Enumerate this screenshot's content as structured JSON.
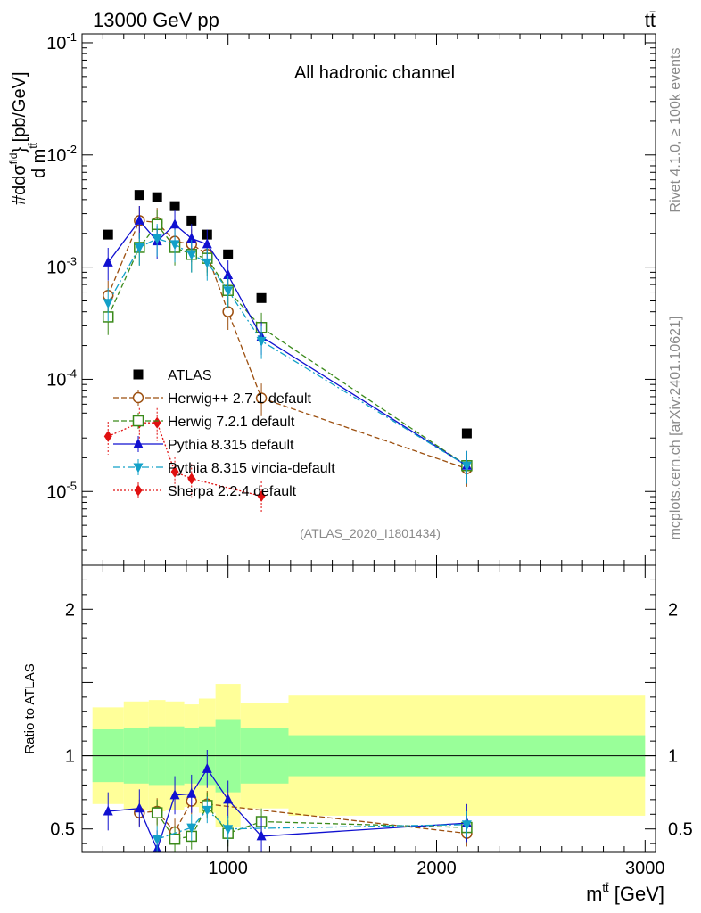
{
  "header": {
    "energy_label": "13000 GeV pp",
    "process_label": "tt̄"
  },
  "side_texts": {
    "rivet": "Rivet 4.1.0, ≥ 100k events",
    "mcplots": "mcplots.cern.ch [arXiv:2401.10621]"
  },
  "colors": {
    "data": "#000000",
    "herwigpp": "#9c4f0f",
    "herwig7": "#3a8a1a",
    "pythia": "#1010d0",
    "vincia": "#12a0c8",
    "sherpa": "#e01010",
    "band_outer": "#ffff99",
    "band_inner": "#99ff99"
  },
  "chart_data": [
    {
      "type": "scatter",
      "name": "main",
      "title": "All hadronic channel",
      "analysis_label": "(ATLAS_2020_I1801434)",
      "xlabel": "m^{tt̄} [GeV]",
      "ylabel": "#dσ^{fid}/d m^{tt̄} [pb/GeV]",
      "xscale": "linear",
      "yscale": "log",
      "xlim": [
        300,
        3050
      ],
      "ylim": [
        2.2e-06,
        0.12
      ],
      "y_tick_labels": [
        "10^-5",
        "10^-4",
        "10^-3",
        "10^-2",
        "10^-1"
      ],
      "legend_position": "lower-left",
      "series": [
        {
          "key": "data",
          "name": "ATLAS",
          "marker": "square-filled",
          "x": [
            425,
            575,
            660,
            745,
            825,
            900,
            1000,
            1160,
            2145
          ],
          "y": [
            0.00195,
            0.0044,
            0.0042,
            0.0035,
            0.0026,
            0.00195,
            0.0013,
            0.00053,
            3.3e-05
          ]
        },
        {
          "key": "herwigpp",
          "name": "Herwig++ 2.7.1 default",
          "marker": "circle-open",
          "line": "dashed",
          "x": [
            425,
            575,
            660,
            745,
            825,
            900,
            1000,
            1160,
            2145
          ],
          "y": [
            0.00056,
            0.0026,
            0.0025,
            0.0017,
            0.0016,
            0.0013,
            0.0004,
            6.8e-05,
            1.6e-05
          ]
        },
        {
          "key": "herwig7",
          "name": "Herwig 7.2.1 default",
          "marker": "square-open",
          "line": "dashed",
          "x": [
            425,
            575,
            660,
            745,
            825,
            900,
            1000,
            1160,
            2145
          ],
          "y": [
            0.00036,
            0.0015,
            0.0024,
            0.0015,
            0.0013,
            0.0012,
            0.00062,
            0.00029,
            1.7e-05
          ]
        },
        {
          "key": "pythia",
          "name": "Pythia 8.315 default",
          "marker": "triangle-up",
          "line": "solid",
          "x": [
            425,
            575,
            660,
            745,
            825,
            900,
            1000,
            1160,
            2145
          ],
          "y": [
            0.0011,
            0.0026,
            0.0017,
            0.0024,
            0.0018,
            0.0016,
            0.00085,
            0.00024,
            1.7e-05
          ]
        },
        {
          "key": "vincia",
          "name": "Pythia 8.315 vincia-default",
          "marker": "triangle-down",
          "line": "dashdot",
          "x": [
            425,
            575,
            660,
            745,
            825,
            900,
            1000,
            1160,
            2145
          ],
          "y": [
            0.00048,
            0.0015,
            0.0018,
            0.0016,
            0.0013,
            0.0011,
            0.00062,
            0.00022,
            1.7e-05
          ]
        },
        {
          "key": "sherpa",
          "name": "Sherpa 2.2.4 default",
          "marker": "diamond",
          "line": "dotted",
          "x": [
            425,
            575,
            660,
            745,
            825,
            1160
          ],
          "y": [
            3.1e-05,
            4.1e-05,
            4.1e-05,
            1.5e-05,
            1.3e-05,
            9.1e-06
          ]
        }
      ]
    },
    {
      "type": "line",
      "name": "ratio",
      "ylabel": "Ratio to ATLAS",
      "xlim": [
        300,
        3050
      ],
      "ylim": [
        0.34,
        2.3
      ],
      "x_ticks": [
        1000,
        2000,
        3000
      ],
      "x_tick_labels": [
        "1000",
        "2000",
        "3000"
      ],
      "y_ticks": [
        0.5,
        1,
        2
      ],
      "y_tick_labels": [
        "0.5",
        "1",
        "2"
      ],
      "uncertainty_bins": {
        "edges": [
          350,
          500,
          620,
          700,
          790,
          860,
          940,
          1060,
          1290,
          3000
        ],
        "inner": [
          0.18,
          0.19,
          0.2,
          0.2,
          0.19,
          0.2,
          0.25,
          0.19,
          0.14
        ],
        "outer": [
          0.15,
          0.18,
          0.18,
          0.17,
          0.16,
          0.19,
          0.24,
          0.17,
          0.27
        ]
      },
      "series": [
        {
          "key": "herwigpp",
          "x": [
            575,
            660,
            745,
            825,
            900,
            2145
          ],
          "y": [
            0.61,
            0.62,
            0.48,
            0.69,
            0.67,
            0.47
          ]
        },
        {
          "key": "herwig7",
          "x": [
            660,
            745,
            825,
            900,
            1000,
            1160,
            2145
          ],
          "y": [
            0.61,
            0.43,
            0.45,
            0.66,
            0.47,
            0.55,
            0.51
          ]
        },
        {
          "key": "pythia",
          "x": [
            425,
            575,
            660,
            745,
            825,
            900,
            1000,
            1160,
            2145
          ],
          "y": [
            0.62,
            0.64,
            0.36,
            0.73,
            0.74,
            0.91,
            0.7,
            0.45,
            0.54
          ]
        },
        {
          "key": "vincia",
          "x": [
            660,
            825,
            900,
            1000,
            2145
          ],
          "y": [
            0.43,
            0.51,
            0.63,
            0.5,
            0.53
          ]
        }
      ]
    }
  ]
}
